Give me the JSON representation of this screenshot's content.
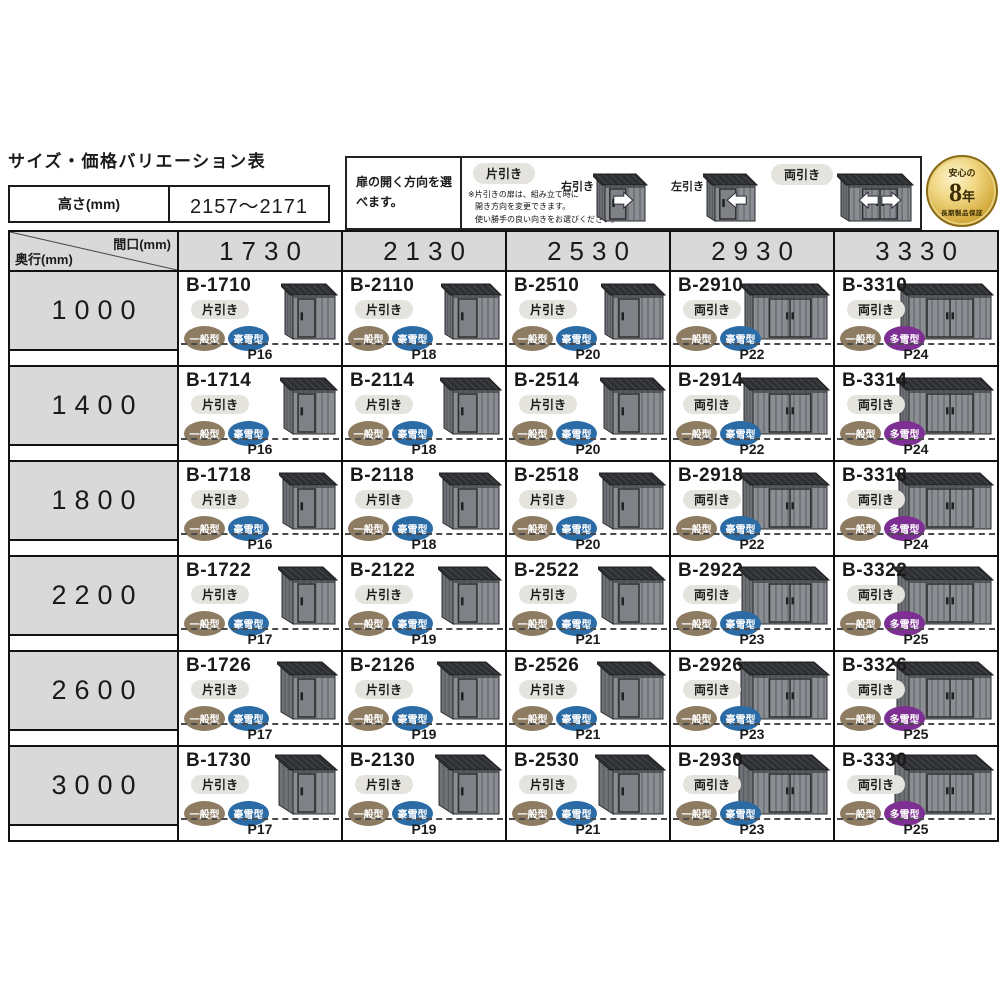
{
  "page": {
    "title": "サイズ・価格バリエーション表"
  },
  "height_table": {
    "label": "高さ(mm)",
    "value": "2157～2171"
  },
  "legend": {
    "intro": "扉の開く方向を選べます。",
    "single_label": "片引き",
    "notes": [
      "※片引きの扉は、組み立て時に",
      "開き方向を変更できます。",
      "使い勝手の良い向きをお選びください。"
    ],
    "right_label": "右引き",
    "left_label": "左引き",
    "double_label": "両引き"
  },
  "warranty": {
    "top": "安心の",
    "year_num": "8",
    "year_unit": "年",
    "bottom": "長期製品保証"
  },
  "icons": {
    "shed": "shed-illustration",
    "warranty": "gold-medal-badge",
    "arrow_right": "white-right-arrow",
    "arrow_left": "white-left-arrow"
  },
  "type_colors": {
    "一般型": "#8d7b62",
    "豪雪型": "#2b6ba6",
    "多雪型": "#7d2f93"
  },
  "colors": {
    "header_bg": "#d9d9d9",
    "pill_bg": "#e4e3de",
    "shed_front": "#8a8d92",
    "shed_side": "#6e7175",
    "shed_roof": "#2d2f32",
    "shed_door": "#7e8186"
  },
  "table": {
    "corner_top": "間口(mm)",
    "corner_bottom": "奥行(mm)",
    "columns": [
      "1730",
      "2130",
      "2530",
      "2930",
      "3330"
    ],
    "rows": [
      {
        "depth": "1000",
        "cells": [
          {
            "model": "B-1710",
            "door": "片引き",
            "types": [
              "一般型",
              "豪雪型"
            ],
            "page": "P16"
          },
          {
            "model": "B-2110",
            "door": "片引き",
            "types": [
              "一般型",
              "豪雪型"
            ],
            "page": "P18"
          },
          {
            "model": "B-2510",
            "door": "片引き",
            "types": [
              "一般型",
              "豪雪型"
            ],
            "page": "P20"
          },
          {
            "model": "B-2910",
            "door": "両引き",
            "types": [
              "一般型",
              "豪雪型"
            ],
            "page": "P22"
          },
          {
            "model": "B-3310",
            "door": "両引き",
            "types": [
              "一般型",
              "多雪型"
            ],
            "page": "P24"
          }
        ]
      },
      {
        "depth": "1400",
        "cells": [
          {
            "model": "B-1714",
            "door": "片引き",
            "types": [
              "一般型",
              "豪雪型"
            ],
            "page": "P16"
          },
          {
            "model": "B-2114",
            "door": "片引き",
            "types": [
              "一般型",
              "豪雪型"
            ],
            "page": "P18"
          },
          {
            "model": "B-2514",
            "door": "片引き",
            "types": [
              "一般型",
              "豪雪型"
            ],
            "page": "P20"
          },
          {
            "model": "B-2914",
            "door": "両引き",
            "types": [
              "一般型",
              "豪雪型"
            ],
            "page": "P22"
          },
          {
            "model": "B-3314",
            "door": "両引き",
            "types": [
              "一般型",
              "多雪型"
            ],
            "page": "P24"
          }
        ]
      },
      {
        "depth": "1800",
        "cells": [
          {
            "model": "B-1718",
            "door": "片引き",
            "types": [
              "一般型",
              "豪雪型"
            ],
            "page": "P16"
          },
          {
            "model": "B-2118",
            "door": "片引き",
            "types": [
              "一般型",
              "豪雪型"
            ],
            "page": "P18"
          },
          {
            "model": "B-2518",
            "door": "片引き",
            "types": [
              "一般型",
              "豪雪型"
            ],
            "page": "P20"
          },
          {
            "model": "B-2918",
            "door": "両引き",
            "types": [
              "一般型",
              "豪雪型"
            ],
            "page": "P22"
          },
          {
            "model": "B-3318",
            "door": "両引き",
            "types": [
              "一般型",
              "多雪型"
            ],
            "page": "P24"
          }
        ]
      },
      {
        "depth": "2200",
        "cells": [
          {
            "model": "B-1722",
            "door": "片引き",
            "types": [
              "一般型",
              "豪雪型"
            ],
            "page": "P17"
          },
          {
            "model": "B-2122",
            "door": "片引き",
            "types": [
              "一般型",
              "豪雪型"
            ],
            "page": "P19"
          },
          {
            "model": "B-2522",
            "door": "片引き",
            "types": [
              "一般型",
              "豪雪型"
            ],
            "page": "P21"
          },
          {
            "model": "B-2922",
            "door": "両引き",
            "types": [
              "一般型",
              "豪雪型"
            ],
            "page": "P23"
          },
          {
            "model": "B-3322",
            "door": "両引き",
            "types": [
              "一般型",
              "多雪型"
            ],
            "page": "P25"
          }
        ]
      },
      {
        "depth": "2600",
        "cells": [
          {
            "model": "B-1726",
            "door": "片引き",
            "types": [
              "一般型",
              "豪雪型"
            ],
            "page": "P17"
          },
          {
            "model": "B-2126",
            "door": "片引き",
            "types": [
              "一般型",
              "豪雪型"
            ],
            "page": "P19"
          },
          {
            "model": "B-2526",
            "door": "片引き",
            "types": [
              "一般型",
              "豪雪型"
            ],
            "page": "P21"
          },
          {
            "model": "B-2926",
            "door": "両引き",
            "types": [
              "一般型",
              "豪雪型"
            ],
            "page": "P23"
          },
          {
            "model": "B-3326",
            "door": "両引き",
            "types": [
              "一般型",
              "多雪型"
            ],
            "page": "P25"
          }
        ]
      },
      {
        "depth": "3000",
        "cells": [
          {
            "model": "B-1730",
            "door": "片引き",
            "types": [
              "一般型",
              "豪雪型"
            ],
            "page": "P17"
          },
          {
            "model": "B-2130",
            "door": "片引き",
            "types": [
              "一般型",
              "豪雪型"
            ],
            "page": "P19"
          },
          {
            "model": "B-2530",
            "door": "片引き",
            "types": [
              "一般型",
              "豪雪型"
            ],
            "page": "P21"
          },
          {
            "model": "B-2930",
            "door": "両引き",
            "types": [
              "一般型",
              "豪雪型"
            ],
            "page": "P23"
          },
          {
            "model": "B-3330",
            "door": "両引き",
            "types": [
              "一般型",
              "多雪型"
            ],
            "page": "P25"
          }
        ]
      }
    ]
  }
}
